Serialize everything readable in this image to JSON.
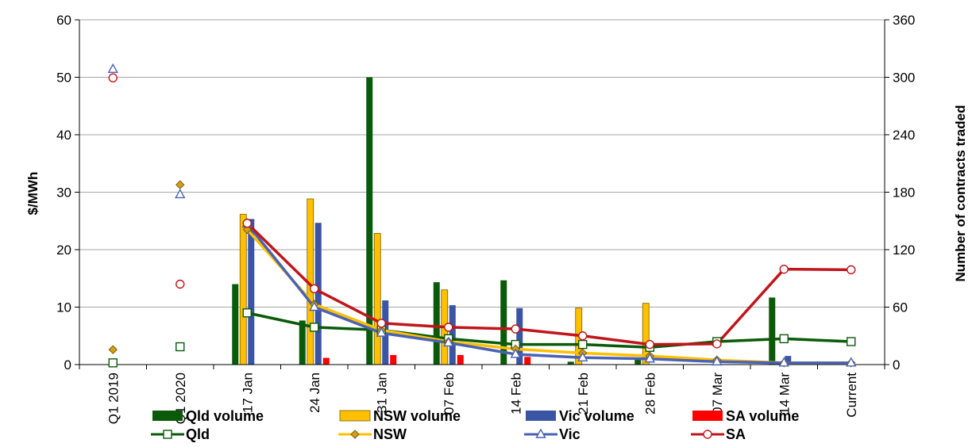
{
  "chart_data": {
    "type": "bar",
    "categories": [
      "Q1 2019",
      "Q1 2020",
      "17 Jan",
      "24 Jan",
      "31 Jan",
      "07 Feb",
      "14 Feb",
      "21 Feb",
      "28 Feb",
      "07 Mar",
      "14 Mar",
      "Current"
    ],
    "ylabel": "$/MWh",
    "y2label": "Number of contracts traded",
    "ylim": [
      0,
      60
    ],
    "y2lim": [
      0,
      360
    ],
    "yticks": [
      "0",
      "10",
      "20",
      "30",
      "40",
      "50",
      "60"
    ],
    "y2ticks": [
      "0",
      "60",
      "120",
      "180",
      "240",
      "300",
      "360"
    ],
    "grid": true,
    "legend_position": "bottom",
    "bar_series": [
      {
        "name": "Qld volume",
        "color": "#0a5a0a",
        "axis": "right",
        "values": [
          null,
          null,
          84,
          46,
          300,
          86,
          88,
          3,
          5,
          null,
          70,
          null
        ]
      },
      {
        "name": "NSW volume",
        "color": "#ffc000",
        "axis": "right",
        "values": [
          null,
          null,
          157,
          173,
          137,
          78,
          null,
          59,
          64,
          null,
          null,
          null
        ]
      },
      {
        "name": "Vic volume",
        "color": "#3a55a4",
        "axis": "right",
        "values": [
          null,
          null,
          152,
          148,
          67,
          62,
          59,
          null,
          null,
          null,
          9,
          null
        ]
      },
      {
        "name": "SA volume",
        "color": "#ff0000",
        "axis": "right",
        "values": [
          null,
          null,
          null,
          7,
          10,
          10,
          8,
          null,
          null,
          null,
          null,
          null
        ]
      }
    ],
    "line_series": [
      {
        "name": "Qld",
        "color": "#0a5a0a",
        "marker": "square",
        "axis": "left",
        "values": [
          0.3,
          3.1,
          9.0,
          6.5,
          6.0,
          4.5,
          3.5,
          3.5,
          3.0,
          4.0,
          4.5,
          4.0
        ]
      },
      {
        "name": "NSW",
        "color": "#ffc000",
        "marker": "diamond",
        "axis": "left",
        "values": [
          2.6,
          31.3,
          23.5,
          10.5,
          6.0,
          4.0,
          2.7,
          2.0,
          1.5,
          0.8,
          0.3,
          0.3
        ]
      },
      {
        "name": "Vic",
        "color": "#4a62b4",
        "marker": "triangle",
        "axis": "left",
        "values": [
          51.4,
          29.6,
          24.5,
          10.0,
          5.5,
          3.8,
          1.8,
          1.2,
          1.0,
          0.5,
          0.3,
          0.3
        ]
      },
      {
        "name": "SA",
        "color": "#c0151b",
        "marker": "circle",
        "axis": "left",
        "values": [
          49.9,
          14.0,
          24.6,
          13.2,
          7.2,
          6.5,
          6.2,
          5.0,
          3.5,
          3.6,
          16.6,
          16.5
        ]
      }
    ]
  }
}
